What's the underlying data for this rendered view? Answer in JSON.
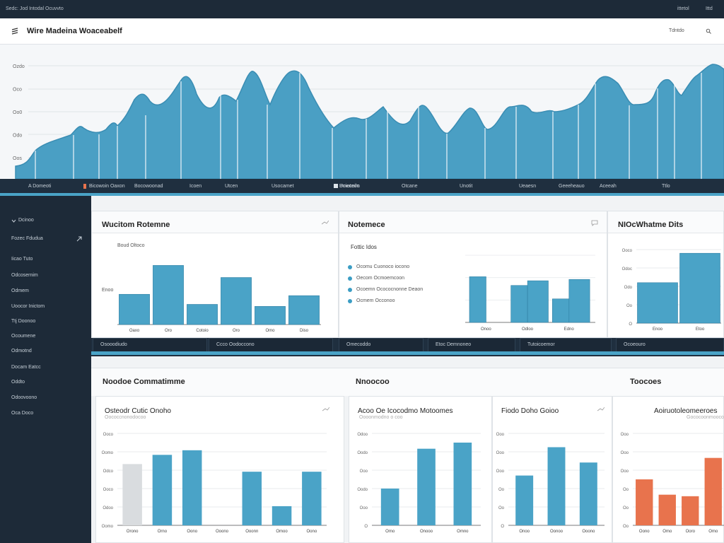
{
  "colors": {
    "accent": "#4aa3c7",
    "bar": "#4aa3c7",
    "orange": "#e8734d",
    "dark": "#1d2a38"
  },
  "topbar": {
    "breadcrumb": "Sedc: Jod Intodal Ocuvvto",
    "right1": "ittetol",
    "right2": "Ittd"
  },
  "header": {
    "title": "Wire Madeina Woaceabelf",
    "search_label": "Tdntdo",
    "menu_icon": "menu-icon",
    "search_icon": "search-icon"
  },
  "hero": {
    "y_labels": [
      "Ozdo",
      "Oco",
      "Oo0",
      "Odo",
      "Oos"
    ],
    "legend_items": [
      "A Domeoti",
      "Bicowoin Oaxon",
      "Bocowoonad",
      "Icoen",
      "Utcen",
      "Usocamet",
      "Boiecoim",
      "Umutedo",
      "Otcane",
      "Unotit",
      "Ueaesn",
      "Geeeheauo",
      "Aceeah",
      "Ttlo"
    ]
  },
  "sidebar": {
    "items": [
      "Dcinoo",
      "Fozec Fdudua",
      "Iicao Tuto",
      "Odcosernim",
      "Odmem",
      "Uoocor Inictom",
      "Ttj Doonoo",
      "Ocoumene",
      "Odmotnd",
      "Docam Eatcc",
      "Oddto",
      "Odoovoono",
      "Oca Doco"
    ]
  },
  "row1": {
    "panels": [
      {
        "title": "Wucitom Rotemne",
        "subtitle": "Boud Oltoco",
        "y_label": "Enoo",
        "categories": [
          "Oaxo",
          "Oro",
          "Cotoio",
          "Oro",
          "Omo",
          "Diso"
        ],
        "values": [
          45,
          88,
          30,
          70,
          27,
          43
        ],
        "y_max": 100
      },
      {
        "title": "Notemece",
        "subtitle": "Fottic Idos",
        "list": [
          "Ocomu Cuonoco iocono",
          "Oecom Ocmoemcoon",
          "Ocoemn Ocococnonne Deaon",
          "Ocmem Occonoo"
        ],
        "categories": [
          "Onoo",
          "Odloo",
          "Edno"
        ],
        "series_a": [
          68,
          55,
          35
        ],
        "series_b": [
          0,
          62,
          64
        ],
        "y_max": 100
      },
      {
        "title": "NIOcWhatme Dits",
        "y_labels": [
          "Ooco",
          "Odoc",
          "Odo",
          "Oo",
          "O"
        ],
        "categories": [
          "Enoo",
          "Etoo"
        ],
        "values": [
          55,
          95
        ],
        "y_max": 100
      }
    ],
    "buttons": [
      "Osooodiudo",
      "Ccco Oodoccono",
      "Omecoddo",
      "Etoc Demnoneo",
      "Tutoicoemor",
      "Ocoeouro"
    ]
  },
  "row2": {
    "section_titles": [
      "Noodoe Commatimme",
      "Nnoocoo",
      "Toocoes"
    ],
    "panels": [
      {
        "title": "Osteodr Cutic Onoho",
        "caption": "Oococcnonodocoo",
        "y_labels": [
          "Ooco",
          "Oomo",
          "Odco",
          "Ooco",
          "Odoo",
          "Oomo"
        ],
        "categories": [
          "Orono",
          "Orno",
          "Oono",
          "Ooono",
          "Ooonn",
          "Omoo",
          "Oono"
        ],
        "values": [
          80,
          92,
          98,
          0,
          70,
          25,
          70
        ],
        "highlight_index": 0,
        "y_max": 120
      },
      {
        "title": "Acoo Oe Icocodmo Motoomes",
        "caption": "Oooonmodno o coo",
        "y_labels": [
          "Odoo",
          "Oodo",
          "Ooo",
          "Oodo",
          "Ooo",
          "O"
        ],
        "categories": [
          "Omo",
          "Onooo",
          "Omno"
        ],
        "values": [
          48,
          100,
          108
        ],
        "y_max": 120
      },
      {
        "title": "Fiodo Doho Goioo",
        "y_labels": [
          "Ooo",
          "Ooo",
          "Ooo",
          "Oo",
          "Oo",
          "O"
        ],
        "categories": [
          "Onoo",
          "Oonoo",
          "Ooono"
        ],
        "values": [
          65,
          102,
          82
        ],
        "y_max": 120
      },
      {
        "title": "Aoiruotoleomeeroes",
        "caption": "Gococoonmooco",
        "y_labels": [
          "Ooo",
          "Ooo",
          "Ooo",
          "Oo",
          "Oo",
          "Oo"
        ],
        "categories": [
          "Oono",
          "Omo",
          "Ooro",
          "Omo"
        ],
        "values": [
          60,
          40,
          38,
          88
        ],
        "y_max": 120
      }
    ]
  }
}
